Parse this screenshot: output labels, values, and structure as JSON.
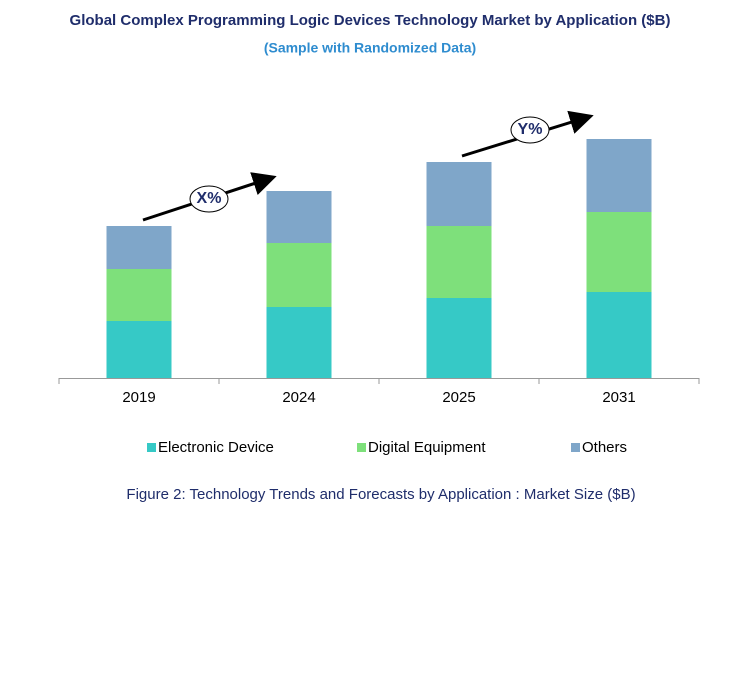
{
  "chart_data": {
    "type": "bar",
    "stacked": true,
    "title": "Global Complex Programming Logic Devices Technology Market by Application ($B)",
    "subtitle": "(Sample with Randomized Data)",
    "caption": "Figure 2: Technology  Trends  and Forecasts by Application : Market Size ($B)",
    "annotations": [
      "X%",
      "Y%"
    ],
    "categories": [
      "2019",
      "2024",
      "2025",
      "2031"
    ],
    "series": [
      {
        "name": "Electronic Device",
        "color": "#36c9c6",
        "values": [
          57,
          71,
          80,
          86
        ]
      },
      {
        "name": "Digital Equipment",
        "color": "#7ee07b",
        "values": [
          52,
          64,
          72,
          80
        ]
      },
      {
        "name": "Others",
        "color": "#7fa6c9",
        "values": [
          43,
          52,
          64,
          73
        ]
      }
    ],
    "ylim": [
      0,
      280
    ]
  }
}
